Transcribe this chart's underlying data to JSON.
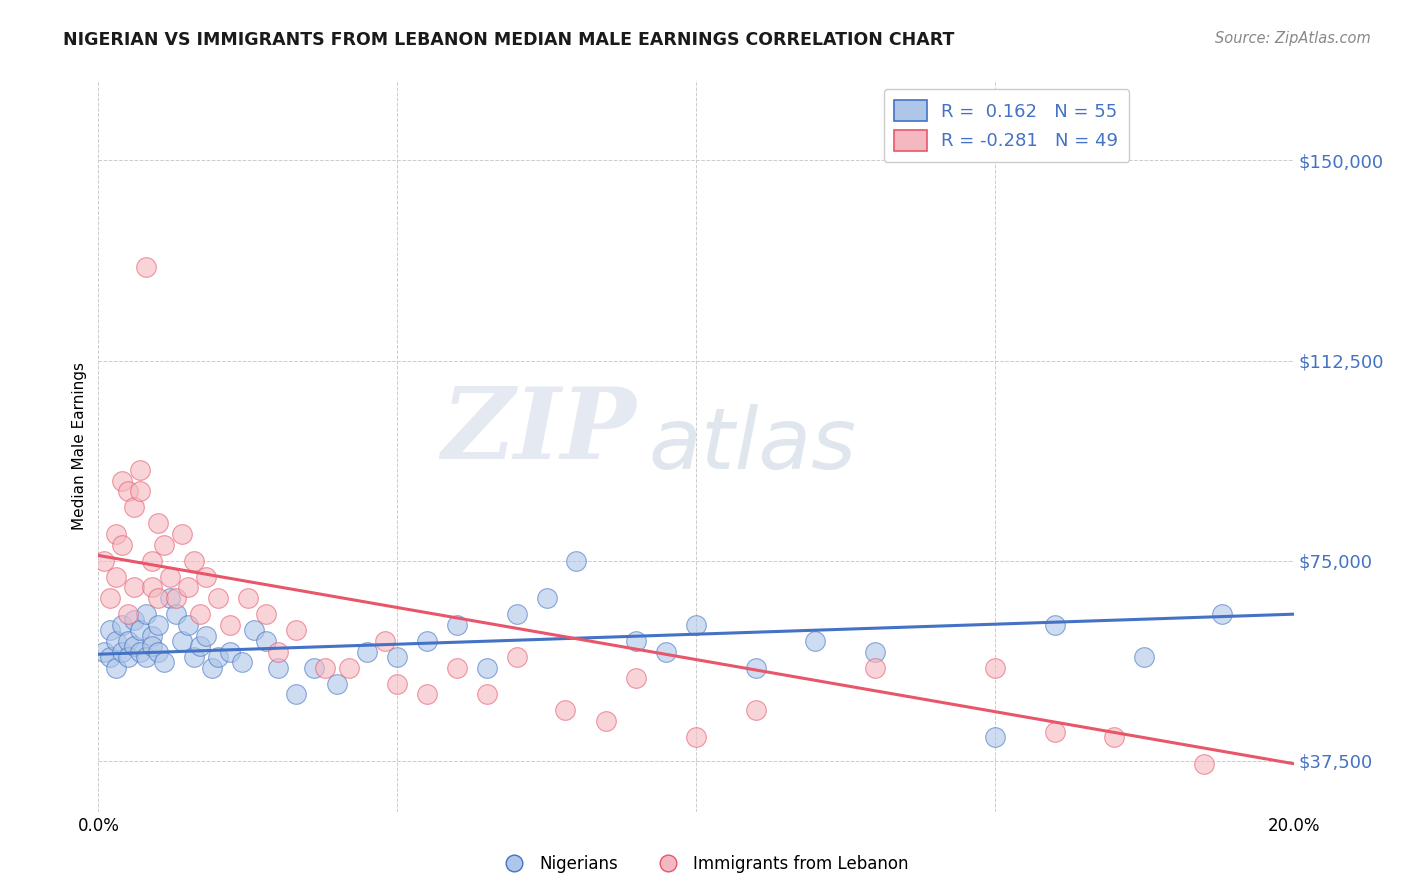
{
  "title": "NIGERIAN VS IMMIGRANTS FROM LEBANON MEDIAN MALE EARNINGS CORRELATION CHART",
  "source": "Source: ZipAtlas.com",
  "ylabel": "Median Male Earnings",
  "xlim": [
    0.0,
    0.2
  ],
  "ylim": [
    28000,
    165000
  ],
  "yticks": [
    37500,
    75000,
    112500,
    150000
  ],
  "ytick_labels": [
    "$37,500",
    "$75,000",
    "$112,500",
    "$150,000"
  ],
  "xticks": [
    0.0,
    0.05,
    0.1,
    0.15,
    0.2
  ],
  "xtick_labels": [
    "0.0%",
    "",
    "",
    "",
    "20.0%"
  ],
  "nigerian_color": "#aec6e8",
  "lebanon_color": "#f4b8c1",
  "nigerian_line_color": "#4472c4",
  "lebanon_line_color": "#e8566a",
  "r_nigerian": 0.162,
  "n_nigerian": 55,
  "r_lebanon": -0.281,
  "n_lebanon": 49,
  "watermark_zip": "ZIP",
  "watermark_atlas": "atlas",
  "nigerian_x": [
    0.001,
    0.002,
    0.002,
    0.003,
    0.003,
    0.004,
    0.004,
    0.005,
    0.005,
    0.006,
    0.006,
    0.007,
    0.007,
    0.008,
    0.008,
    0.009,
    0.009,
    0.01,
    0.01,
    0.011,
    0.012,
    0.013,
    0.014,
    0.015,
    0.016,
    0.017,
    0.018,
    0.019,
    0.02,
    0.022,
    0.024,
    0.026,
    0.028,
    0.03,
    0.033,
    0.036,
    0.04,
    0.045,
    0.05,
    0.055,
    0.06,
    0.065,
    0.07,
    0.075,
    0.08,
    0.09,
    0.095,
    0.1,
    0.11,
    0.12,
    0.13,
    0.15,
    0.16,
    0.175,
    0.188
  ],
  "nigerian_y": [
    58000,
    62000,
    57000,
    60000,
    55000,
    63000,
    58000,
    60000,
    57000,
    64000,
    59000,
    62000,
    58000,
    65000,
    57000,
    61000,
    59000,
    63000,
    58000,
    56000,
    68000,
    65000,
    60000,
    63000,
    57000,
    59000,
    61000,
    55000,
    57000,
    58000,
    56000,
    62000,
    60000,
    55000,
    50000,
    55000,
    52000,
    58000,
    57000,
    60000,
    63000,
    55000,
    65000,
    68000,
    75000,
    60000,
    58000,
    63000,
    55000,
    60000,
    58000,
    42000,
    63000,
    57000,
    65000
  ],
  "lebanon_x": [
    0.001,
    0.002,
    0.003,
    0.003,
    0.004,
    0.004,
    0.005,
    0.005,
    0.006,
    0.006,
    0.007,
    0.007,
    0.008,
    0.009,
    0.009,
    0.01,
    0.01,
    0.011,
    0.012,
    0.013,
    0.014,
    0.015,
    0.016,
    0.017,
    0.018,
    0.02,
    0.022,
    0.025,
    0.028,
    0.03,
    0.033,
    0.038,
    0.042,
    0.048,
    0.05,
    0.055,
    0.06,
    0.065,
    0.07,
    0.078,
    0.085,
    0.09,
    0.1,
    0.11,
    0.13,
    0.15,
    0.16,
    0.17,
    0.185
  ],
  "lebanon_y": [
    75000,
    68000,
    80000,
    72000,
    78000,
    90000,
    65000,
    88000,
    85000,
    70000,
    92000,
    88000,
    130000,
    70000,
    75000,
    82000,
    68000,
    78000,
    72000,
    68000,
    80000,
    70000,
    75000,
    65000,
    72000,
    68000,
    63000,
    68000,
    65000,
    58000,
    62000,
    55000,
    55000,
    60000,
    52000,
    50000,
    55000,
    50000,
    57000,
    47000,
    45000,
    53000,
    42000,
    47000,
    55000,
    55000,
    43000,
    42000,
    37000
  ]
}
